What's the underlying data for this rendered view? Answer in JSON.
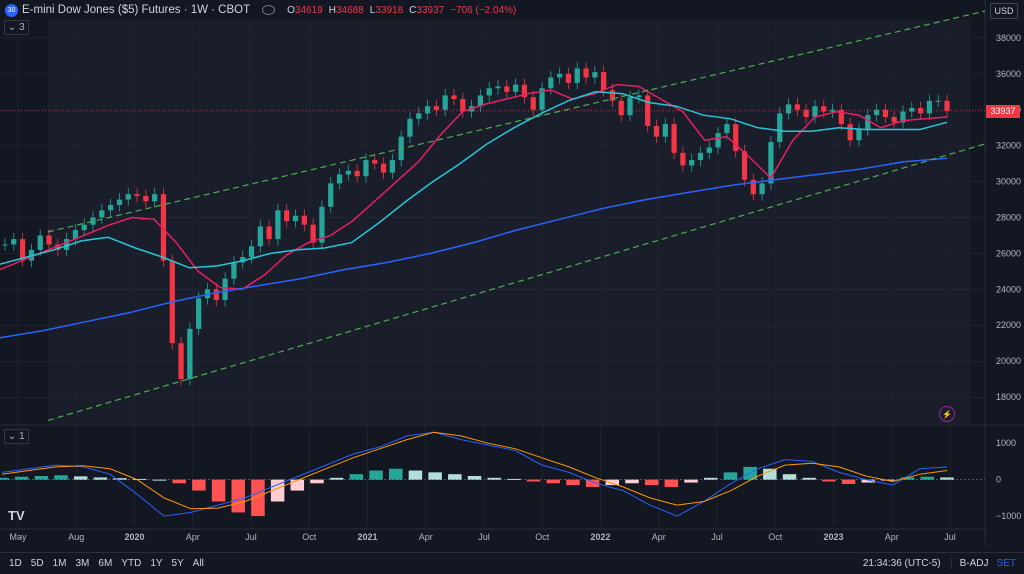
{
  "header": {
    "symbol_badge": "30",
    "title": "E-mini Dow Jones ($5) Futures · 1W · CBOT",
    "ohlc": [
      {
        "k": "O",
        "v": "34619"
      },
      {
        "k": "H",
        "v": "34688"
      },
      {
        "k": "L",
        "v": "33918"
      },
      {
        "k": "C",
        "v": "33937"
      }
    ],
    "change": "−706 (−2.04%)",
    "down_color": "#f23645",
    "up_color": "#26a69a"
  },
  "currency": "USD",
  "last_price": "33937",
  "collapse_main": "3",
  "collapse_macd": "1",
  "bottom": {
    "timeframes": [
      "1D",
      "5D",
      "1M",
      "3M",
      "6M",
      "YTD",
      "1Y",
      "5Y",
      "All"
    ],
    "clock": "21:34:36 (UTC-5)",
    "adj": "B-ADJ",
    "set": "SET"
  },
  "logo": "TV",
  "chart_data": [
    {
      "type": "candlestick",
      "x_ticks": [
        "May",
        "Aug",
        "2020",
        "Apr",
        "Jul",
        "Oct",
        "2021",
        "Apr",
        "Jul",
        "Oct",
        "2022",
        "Apr",
        "Jul",
        "Oct",
        "2023",
        "Apr",
        "Jul"
      ],
      "y_ticks": [
        18000,
        20000,
        22000,
        24000,
        26000,
        28000,
        30000,
        32000,
        34000,
        36000,
        38000
      ],
      "ylim": [
        16500,
        39000
      ],
      "series": [
        {
          "name": "Price",
          "kind": "close_path",
          "values": [
            26500,
            26800,
            25600,
            26200,
            27000,
            26500,
            26200,
            26800,
            27300,
            27600,
            28000,
            28400,
            28700,
            29000,
            29300,
            29200,
            28900,
            29300,
            25600,
            21000,
            19000,
            21800,
            23500,
            24000,
            23400,
            24600,
            25500,
            25800,
            26400,
            27500,
            26800,
            28400,
            27800,
            28100,
            27600,
            26600,
            28600,
            29900,
            30400,
            30600,
            30300,
            31200,
            31000,
            30500,
            31200,
            32500,
            33500,
            33800,
            34200,
            34000,
            34800,
            34600,
            33900,
            34200,
            34800,
            35200,
            35300,
            35000,
            35400,
            34700,
            34000,
            35200,
            35800,
            36000,
            35500,
            36300,
            35800,
            36100,
            35100,
            34500,
            33700,
            34700,
            34800,
            33100,
            32500,
            33200,
            31600,
            30900,
            31200,
            31600,
            31900,
            32700,
            33200,
            31700,
            30100,
            29300,
            29900,
            32200,
            33800,
            34300,
            34000,
            33600,
            34200,
            33900,
            34000,
            33200,
            32300,
            32900,
            33700,
            34000,
            33600,
            33300,
            33900,
            34100,
            33800,
            34500,
            34500,
            33937
          ]
        },
        {
          "name": "MA short",
          "color": "#e91e63",
          "values": [
            25100,
            25600,
            26100,
            26600,
            27100,
            27600,
            28000,
            27900,
            26600,
            25000,
            24100,
            24000,
            24800,
            25900,
            26600,
            27000,
            27800,
            28900,
            30000,
            31100,
            32600,
            33900,
            34300,
            34600,
            34900,
            35100,
            34600,
            34900,
            35400,
            35300,
            34600,
            33900,
            32300,
            32500,
            31400,
            30200,
            32300,
            33600,
            33900,
            33700,
            33000,
            33400,
            33500,
            33600
          ]
        },
        {
          "name": "MA mid",
          "color": "#26c6da",
          "values": [
            25400,
            25800,
            26200,
            26700,
            26900,
            26300,
            25800,
            25200,
            25300,
            25600,
            26000,
            26200,
            26300,
            26600,
            27700,
            28900,
            30000,
            31000,
            32100,
            33000,
            33800,
            34500,
            35000,
            34900,
            34400,
            34200,
            33700,
            33500,
            33000,
            32800,
            32800,
            33000,
            32900,
            32900,
            32900,
            33300
          ]
        },
        {
          "name": "MA long",
          "color": "#2962ff",
          "values": [
            21300,
            21700,
            22200,
            22700,
            23300,
            23800,
            24200,
            24600,
            25100,
            25500,
            26000,
            26600,
            27300,
            27900,
            28500,
            29000,
            29400,
            29800,
            30100,
            30400,
            30700,
            31100,
            31300
          ]
        },
        {
          "name": "Channel upper",
          "color": "#4caf50",
          "values": [
            27200,
            39500
          ]
        },
        {
          "name": "Channel lower",
          "color": "#4caf50",
          "values": [
            16700,
            32100
          ]
        }
      ]
    },
    {
      "type": "bar",
      "y_ticks": [
        1000,
        0,
        -1000
      ],
      "ylim": [
        -1300,
        1500
      ],
      "series": [
        {
          "name": "Histogram",
          "values": [
            50,
            80,
            100,
            120,
            90,
            60,
            40,
            20,
            0,
            -100,
            -300,
            -600,
            -900,
            -1000,
            -600,
            -300,
            -100,
            50,
            150,
            250,
            300,
            250,
            200,
            150,
            100,
            50,
            20,
            -50,
            -100,
            -150,
            -200,
            -150,
            -100,
            -150,
            -200,
            -80,
            50,
            200,
            350,
            300,
            150,
            50,
            -50,
            -120,
            -80,
            -20,
            60,
            80,
            60
          ]
        },
        {
          "name": "MACD",
          "color": "#2962ff",
          "values": [
            200,
            300,
            400,
            350,
            150,
            -400,
            -1000,
            -900,
            -700,
            -500,
            -200,
            100,
            400,
            700,
            900,
            1200,
            1300,
            1100,
            950,
            800,
            400,
            200,
            -100,
            -300,
            -700,
            -1000,
            -600,
            -100,
            300,
            550,
            500,
            200,
            0,
            -150,
            300,
            350
          ]
        },
        {
          "name": "Signal",
          "color": "#ff9800",
          "values": [
            150,
            250,
            350,
            380,
            300,
            0,
            -500,
            -800,
            -780,
            -600,
            -300,
            0,
            300,
            600,
            850,
            1100,
            1300,
            1200,
            1000,
            850,
            600,
            350,
            50,
            -200,
            -500,
            -700,
            -600,
            -300,
            100,
            400,
            450,
            350,
            100,
            -50,
            150,
            250
          ]
        }
      ]
    }
  ]
}
